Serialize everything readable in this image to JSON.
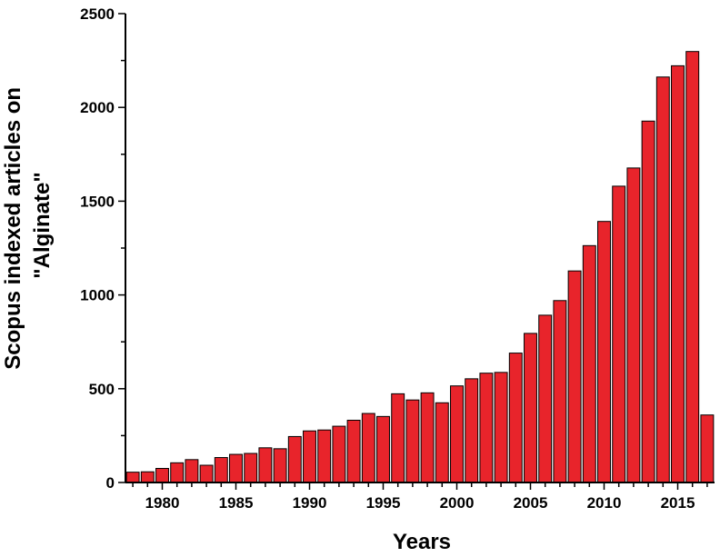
{
  "chart_data": {
    "type": "bar",
    "xlabel": "Years",
    "ylabel_lines": [
      "Scopus indexed articles on",
      "\"Alginate\""
    ],
    "ylim": [
      0,
      2500
    ],
    "xlim": [
      1977.5,
      2017.5
    ],
    "yticks": [
      0,
      500,
      1000,
      1500,
      2000,
      2500
    ],
    "xticks": [
      1980,
      1985,
      1990,
      1995,
      2000,
      2005,
      2010,
      2015
    ],
    "bar_color": "#e8242b",
    "bar_edge_color": "#000000",
    "series": [
      {
        "x": [
          1978,
          1979,
          1980,
          1981,
          1982,
          1983,
          1984,
          1985,
          1986,
          1987,
          1988,
          1989,
          1990,
          1991,
          1992,
          1993,
          1994,
          1995,
          1996,
          1997,
          1998,
          1999,
          2000,
          2001,
          2002,
          2003,
          2004,
          2005,
          2006,
          2007,
          2008,
          2009,
          2010,
          2011,
          2012,
          2013,
          2014,
          2015,
          2016,
          2017
        ],
        "values": [
          55,
          57,
          75,
          105,
          122,
          92,
          133,
          150,
          155,
          185,
          180,
          245,
          275,
          280,
          300,
          332,
          368,
          352,
          473,
          440,
          478,
          425,
          515,
          553,
          583,
          587,
          690,
          795,
          892,
          970,
          1128,
          1263,
          1392,
          1580,
          1677,
          1927,
          2162,
          2222,
          2298,
          360
        ]
      }
    ]
  }
}
